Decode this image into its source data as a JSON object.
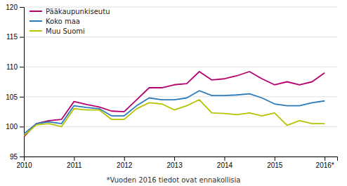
{
  "chart_data": {
    "type": "line",
    "x": [
      2010.0,
      2010.25,
      2010.5,
      2010.75,
      2011.0,
      2011.25,
      2011.5,
      2011.75,
      2012.0,
      2012.25,
      2012.5,
      2012.75,
      2013.0,
      2013.25,
      2013.5,
      2013.75,
      2014.0,
      2014.25,
      2014.5,
      2014.75,
      2015.0,
      2015.25,
      2015.5,
      2015.75,
      2016.0
    ],
    "series": [
      {
        "name": "Pääkaupunkiseutu",
        "color": "#b5006e",
        "values": [
          98.3,
          100.5,
          101.0,
          101.2,
          104.2,
          103.7,
          103.3,
          102.6,
          102.5,
          104.5,
          106.5,
          106.5,
          107.0,
          107.2,
          109.2,
          107.8,
          108.0,
          108.5,
          109.2,
          108.0,
          107.0,
          107.5,
          107.0,
          107.5,
          109.0
        ]
      },
      {
        "name": "Koko maa",
        "color": "#2b7bba",
        "values": [
          98.8,
          100.5,
          100.8,
          100.5,
          103.5,
          103.2,
          103.0,
          101.8,
          101.8,
          103.5,
          104.8,
          104.5,
          104.5,
          104.8,
          106.0,
          105.2,
          105.2,
          105.3,
          105.5,
          104.8,
          103.8,
          103.5,
          103.5,
          104.0,
          104.3
        ]
      },
      {
        "name": "Muu Suomi",
        "color": "#b5c400",
        "values": [
          98.5,
          100.3,
          100.5,
          100.0,
          103.0,
          102.8,
          102.8,
          101.2,
          101.2,
          103.0,
          104.0,
          103.8,
          102.8,
          103.5,
          104.5,
          102.3,
          102.2,
          102.0,
          102.3,
          101.8,
          102.3,
          100.2,
          101.0,
          100.5,
          100.5
        ]
      }
    ],
    "xlim": [
      2010.0,
      2016.25
    ],
    "xticks": [
      2010,
      2011,
      2012,
      2013,
      2014,
      2015,
      {
        "value": 2016,
        "label": "2016*"
      }
    ],
    "ylim": [
      95,
      120
    ],
    "yticks": [
      95,
      100,
      105,
      110,
      115,
      120
    ],
    "grid": "y",
    "legend": "upper left",
    "annotations": [
      "*Vuoden 2016 tiedot ovat ennakollisia"
    ]
  }
}
